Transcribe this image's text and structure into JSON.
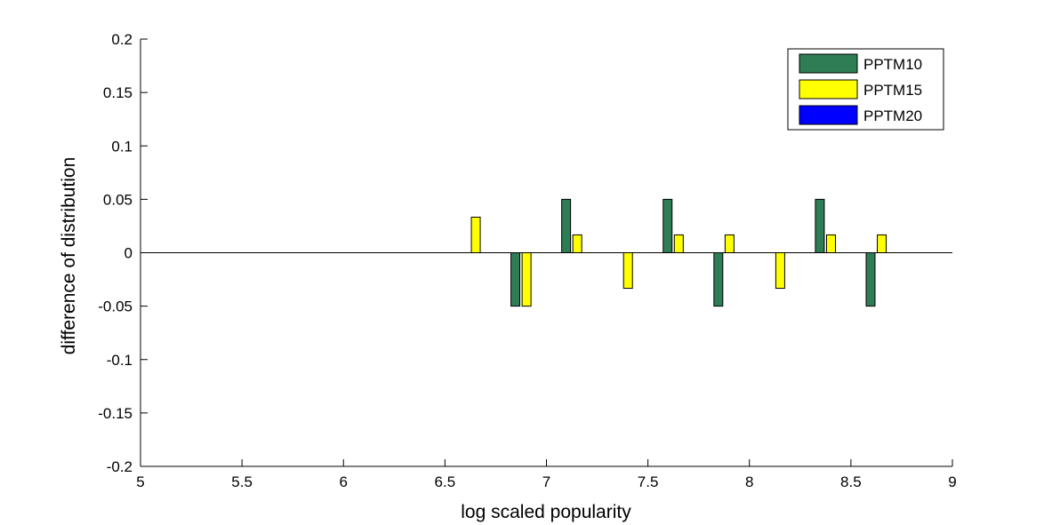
{
  "chart_data": {
    "type": "bar",
    "xlabel": "log scaled popularity",
    "ylabel": "difference of distribution",
    "xlim": [
      5,
      9
    ],
    "ylim": [
      -0.2,
      0.2
    ],
    "xticks": [
      "5",
      "5.5",
      "6",
      "6.5",
      "7",
      "7.5",
      "8",
      "8.5",
      "9"
    ],
    "yticks": [
      "0.2",
      "0.15",
      "0.1",
      "0.05",
      "0",
      "-0.05",
      "-0.1",
      "-0.15",
      "-0.2"
    ],
    "grid": false,
    "legend_position": "top-right",
    "bin_centers": [
      6.625,
      6.875,
      7.125,
      7.375,
      7.625,
      7.875,
      8.125,
      8.375,
      8.625
    ],
    "series": [
      {
        "name": "PPTM10",
        "color": "#2e7d55",
        "values": [
          0,
          -0.05,
          0.05,
          0,
          0.05,
          -0.05,
          0,
          0.05,
          -0.05
        ]
      },
      {
        "name": "PPTM15",
        "color": "#ffff00",
        "values": [
          0.0333,
          -0.05,
          0.0167,
          -0.0333,
          0.0167,
          0.0167,
          -0.0333,
          0.0167,
          0.0167
        ]
      },
      {
        "name": "PPTM20",
        "color": "#0000ff",
        "values": [
          0,
          0,
          0,
          0,
          0,
          0,
          0,
          0,
          0
        ]
      }
    ]
  }
}
